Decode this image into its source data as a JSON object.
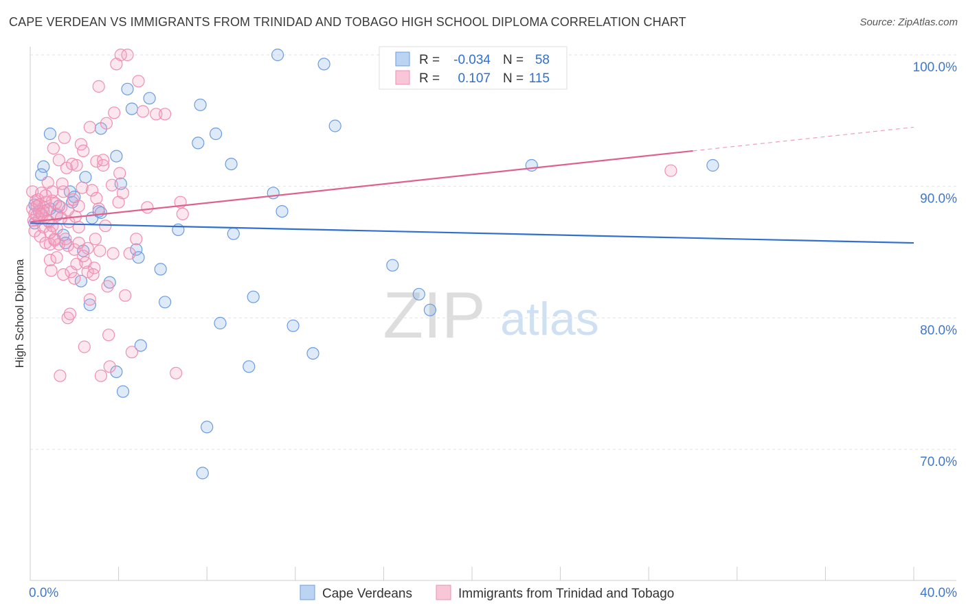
{
  "chart_data": {
    "type": "scatter",
    "title": "CAPE VERDEAN VS IMMIGRANTS FROM TRINIDAD AND TOBAGO HIGH SCHOOL DIPLOMA CORRELATION CHART",
    "source": "Source: ZipAtlas.com",
    "xlabel": "",
    "ylabel": "High School Diploma",
    "xlim": [
      0,
      40
    ],
    "ylim": [
      60,
      101.5
    ],
    "x_ticks": [
      {
        "value": 0,
        "label": "0.0%"
      },
      {
        "value": 40,
        "label": "40.0%"
      }
    ],
    "y_ticks": [
      {
        "value": 70,
        "label": "70.0%"
      },
      {
        "value": 80,
        "label": "80.0%"
      },
      {
        "value": 90,
        "label": "90.0%"
      },
      {
        "value": 100,
        "label": "100.0%"
      }
    ],
    "watermark": {
      "part1": "ZIP",
      "part2": "atlas"
    },
    "legend_top": [
      {
        "r_label": "R =",
        "r_value": "-0.034",
        "n_label": "N =",
        "n_value": "58",
        "series": "Cape Verdeans"
      },
      {
        "r_label": "R =",
        "r_value": "0.107",
        "n_label": "N =",
        "n_value": "115",
        "series": "Immigrants from Trinidad and Tobago"
      }
    ],
    "series": [
      {
        "name": "Cape Verdeans",
        "color": "#6a9be0",
        "line_color": "#2f6fd0",
        "trend": {
          "x0": 0,
          "y0": 87.2,
          "x1": 40,
          "y1": 85.7,
          "solid_until": 40
        },
        "points": [
          [
            0.2,
            87.2
          ],
          [
            0.2,
            88.6
          ],
          [
            0.4,
            88.1
          ],
          [
            0.6,
            91.5
          ],
          [
            0.5,
            90.9
          ],
          [
            0.9,
            94.0
          ],
          [
            0.9,
            88.3
          ],
          [
            1.2,
            87.8
          ],
          [
            1.3,
            88.5
          ],
          [
            1.5,
            86.3
          ],
          [
            1.6,
            85.7
          ],
          [
            1.8,
            89.6
          ],
          [
            1.9,
            88.8
          ],
          [
            2.0,
            89.2
          ],
          [
            2.3,
            82.8
          ],
          [
            2.4,
            85.1
          ],
          [
            2.5,
            90.7
          ],
          [
            2.7,
            81.0
          ],
          [
            2.8,
            87.6
          ],
          [
            3.1,
            88.1
          ],
          [
            3.2,
            94.4
          ],
          [
            3.2,
            88.0
          ],
          [
            3.6,
            82.7
          ],
          [
            3.9,
            75.9
          ],
          [
            3.9,
            92.3
          ],
          [
            4.1,
            90.2
          ],
          [
            4.2,
            74.4
          ],
          [
            4.4,
            97.4
          ],
          [
            4.6,
            95.9
          ],
          [
            4.8,
            85.2
          ],
          [
            4.9,
            84.6
          ],
          [
            5.0,
            77.9
          ],
          [
            5.4,
            96.7
          ],
          [
            5.9,
            83.7
          ],
          [
            6.1,
            81.2
          ],
          [
            6.7,
            86.7
          ],
          [
            7.6,
            93.3
          ],
          [
            7.7,
            96.2
          ],
          [
            8.0,
            71.7
          ],
          [
            7.8,
            68.2
          ],
          [
            8.4,
            94.0
          ],
          [
            8.6,
            79.6
          ],
          [
            9.1,
            91.7
          ],
          [
            9.2,
            86.4
          ],
          [
            9.9,
            76.3
          ],
          [
            10.1,
            81.6
          ],
          [
            11.0,
            89.5
          ],
          [
            11.4,
            88.1
          ],
          [
            11.2,
            100.0
          ],
          [
            11.9,
            79.4
          ],
          [
            12.8,
            77.3
          ],
          [
            13.3,
            99.3
          ],
          [
            13.8,
            94.6
          ],
          [
            16.4,
            84.0
          ],
          [
            17.6,
            81.8
          ],
          [
            18.1,
            80.6
          ],
          [
            22.7,
            91.6
          ],
          [
            30.9,
            91.6
          ]
        ]
      },
      {
        "name": "Immigrants from Trinidad and Tobago",
        "color": "#ee8fb0",
        "line_color": "#e0608c",
        "trend": {
          "x0": 0,
          "y0": 87.3,
          "x1": 40,
          "y1": 94.5,
          "solid_until": 30.0
        },
        "points": [
          [
            0.1,
            89.6
          ],
          [
            0.1,
            88.3
          ],
          [
            0.15,
            87.4
          ],
          [
            0.2,
            86.6
          ],
          [
            0.25,
            88.9
          ],
          [
            0.3,
            87.8
          ],
          [
            0.35,
            89.0
          ],
          [
            0.4,
            88.6
          ],
          [
            0.4,
            87.5
          ],
          [
            0.45,
            86.2
          ],
          [
            0.5,
            89.5
          ],
          [
            0.55,
            87.8
          ],
          [
            0.6,
            88.4
          ],
          [
            0.6,
            86.9
          ],
          [
            0.7,
            85.7
          ],
          [
            0.7,
            88.8
          ],
          [
            0.75,
            88.2
          ],
          [
            0.8,
            90.3
          ],
          [
            0.85,
            87.3
          ],
          [
            0.9,
            85.6
          ],
          [
            0.9,
            84.4
          ],
          [
            0.95,
            83.6
          ],
          [
            1.0,
            89.6
          ],
          [
            1.0,
            87.0
          ],
          [
            1.05,
            92.9
          ],
          [
            1.1,
            86.0
          ],
          [
            1.15,
            88.7
          ],
          [
            1.2,
            84.6
          ],
          [
            1.2,
            87.9
          ],
          [
            1.3,
            92.0
          ],
          [
            1.3,
            85.6
          ],
          [
            1.35,
            75.6
          ],
          [
            1.4,
            88.4
          ],
          [
            1.45,
            90.2
          ],
          [
            1.5,
            89.6
          ],
          [
            1.5,
            83.3
          ],
          [
            1.55,
            93.7
          ],
          [
            1.6,
            86.0
          ],
          [
            1.65,
            91.4
          ],
          [
            1.7,
            80.0
          ],
          [
            1.7,
            85.5
          ],
          [
            1.75,
            87.3
          ],
          [
            1.8,
            80.3
          ],
          [
            1.85,
            83.5
          ],
          [
            1.9,
            91.7
          ],
          [
            1.95,
            89.0
          ],
          [
            2.0,
            83.0
          ],
          [
            2.0,
            85.2
          ],
          [
            2.05,
            87.7
          ],
          [
            2.1,
            91.6
          ],
          [
            2.1,
            84.1
          ],
          [
            2.2,
            85.7
          ],
          [
            2.2,
            88.5
          ],
          [
            2.3,
            93.2
          ],
          [
            2.35,
            89.9
          ],
          [
            2.4,
            92.7
          ],
          [
            2.45,
            77.8
          ],
          [
            2.5,
            84.2
          ],
          [
            2.6,
            83.5
          ],
          [
            2.7,
            81.4
          ],
          [
            2.7,
            94.5
          ],
          [
            2.8,
            89.7
          ],
          [
            2.85,
            83.3
          ],
          [
            2.9,
            83.8
          ],
          [
            2.95,
            86.0
          ],
          [
            3.0,
            89.1
          ],
          [
            3.0,
            91.9
          ],
          [
            3.1,
            97.6
          ],
          [
            3.15,
            85.1
          ],
          [
            3.2,
            75.6
          ],
          [
            3.3,
            91.6
          ],
          [
            3.3,
            92.0
          ],
          [
            3.4,
            87.0
          ],
          [
            3.45,
            94.8
          ],
          [
            3.5,
            82.4
          ],
          [
            3.55,
            78.7
          ],
          [
            3.6,
            76.3
          ],
          [
            3.7,
            90.1
          ],
          [
            3.75,
            84.9
          ],
          [
            3.8,
            95.6
          ],
          [
            3.9,
            99.3
          ],
          [
            4.0,
            88.8
          ],
          [
            4.05,
            91.0
          ],
          [
            4.1,
            100.0
          ],
          [
            4.2,
            89.5
          ],
          [
            4.3,
            81.7
          ],
          [
            4.4,
            100.0
          ],
          [
            4.5,
            84.9
          ],
          [
            4.6,
            77.4
          ],
          [
            4.8,
            86.0
          ],
          [
            4.9,
            98.0
          ],
          [
            5.1,
            95.7
          ],
          [
            5.3,
            88.4
          ],
          [
            5.7,
            95.5
          ],
          [
            6.1,
            95.5
          ],
          [
            6.6,
            75.8
          ],
          [
            6.8,
            88.8
          ],
          [
            6.9,
            87.9
          ],
          [
            29.0,
            91.2
          ],
          [
            0.6,
            88.1
          ],
          [
            0.8,
            87.4
          ],
          [
            1.0,
            88.9
          ],
          [
            1.2,
            86.8
          ],
          [
            0.3,
            88.5
          ],
          [
            0.5,
            87.9
          ],
          [
            0.7,
            89.3
          ],
          [
            1.1,
            85.9
          ],
          [
            1.4,
            87.6
          ],
          [
            2.2,
            86.9
          ],
          [
            2.6,
            85.3
          ],
          [
            3.1,
            88.3
          ],
          [
            0.2,
            87.9
          ],
          [
            0.9,
            86.5
          ],
          [
            1.7,
            88.2
          ],
          [
            2.4,
            84.7
          ]
        ]
      }
    ]
  },
  "legend_bottom": [
    {
      "label": "Cape Verdeans"
    },
    {
      "label": "Immigrants from Trinidad and Tobago"
    }
  ]
}
